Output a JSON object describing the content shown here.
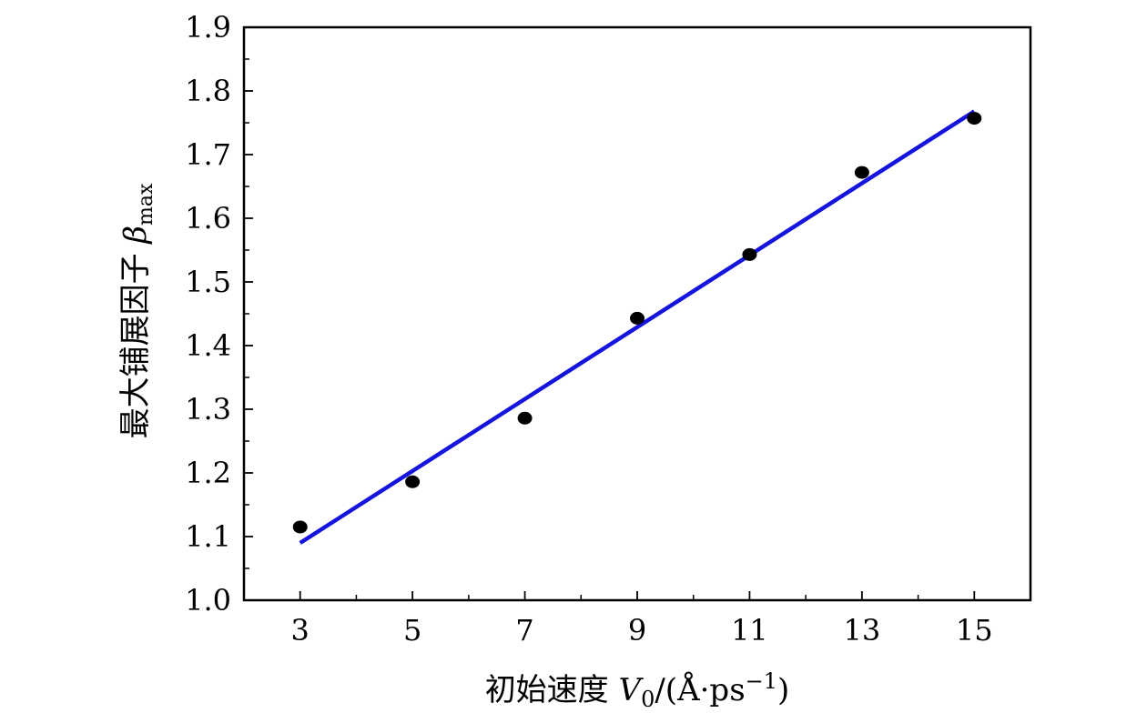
{
  "chart_data": {
    "type": "scatter",
    "xlabel": {
      "prefix": "初始速度 ",
      "var": "V",
      "sub": "0",
      "unit_open": "/(Å·ps",
      "sup": "−1",
      "unit_close": ")"
    },
    "ylabel": {
      "prefix": "最大铺展因子 ",
      "var": "β",
      "sub": "max"
    },
    "xlim": [
      2,
      16
    ],
    "ylim": [
      1.0,
      1.9
    ],
    "x_ticks": [
      3,
      5,
      7,
      9,
      11,
      13,
      15
    ],
    "x_tick_labels": [
      "3",
      "5",
      "7",
      "9",
      "11",
      "13",
      "15"
    ],
    "x_minor_ticks": [
      4,
      6,
      8,
      10,
      12,
      14
    ],
    "y_ticks": [
      1.0,
      1.1,
      1.2,
      1.3,
      1.4,
      1.5,
      1.6,
      1.7,
      1.8,
      1.9
    ],
    "y_tick_labels": [
      "1.0",
      "1.1",
      "1.2",
      "1.3",
      "1.4",
      "1.5",
      "1.6",
      "1.7",
      "1.8",
      "1.9"
    ],
    "y_minor_ticks": [
      1.05,
      1.15,
      1.25,
      1.35,
      1.45,
      1.55,
      1.65,
      1.75,
      1.85
    ],
    "grid": false,
    "legend": "none",
    "series": [
      {
        "type": "scatter",
        "color": "#000000",
        "x": [
          3,
          5,
          7,
          9,
          11,
          13,
          15
        ],
        "y": [
          1.115,
          1.186,
          1.286,
          1.443,
          1.543,
          1.672,
          1.757
        ]
      },
      {
        "type": "line",
        "color": "#1414dc",
        "x": [
          3,
          15
        ],
        "y": [
          1.09,
          1.768
        ]
      }
    ]
  }
}
